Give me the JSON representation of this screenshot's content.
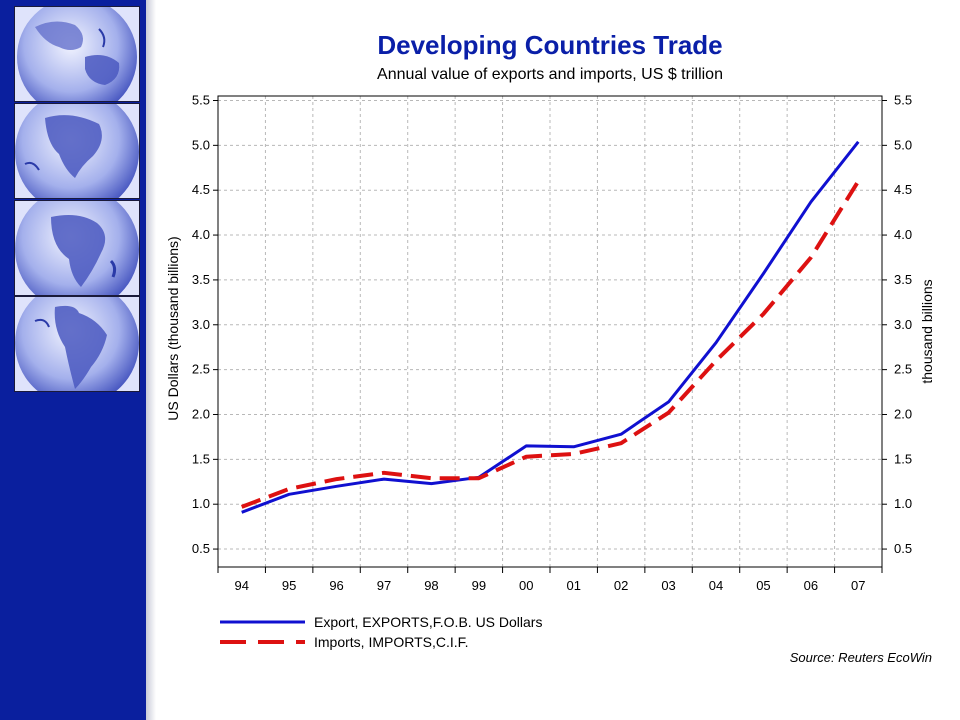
{
  "colors": {
    "sidebar": "#0a1f9e",
    "title": "#0a1fa8",
    "export_line": "#1010d0",
    "import_line": "#dd1111",
    "grid": "#b8b8b8"
  },
  "sidebar": {
    "globes": [
      {
        "icon": "globe-asia-australia-icon"
      },
      {
        "icon": "globe-north-america-icon"
      },
      {
        "icon": "globe-africa-icon"
      },
      {
        "icon": "globe-south-america-icon"
      }
    ]
  },
  "chart_data": {
    "type": "line",
    "title": "Developing Countries Trade",
    "subtitle": "Annual value of exports and imports, US $ trillion",
    "ylabel_left": "US Dollars (thousand billions)",
    "ylabel_right": "thousand billions",
    "categories": [
      "94",
      "95",
      "96",
      "97",
      "98",
      "99",
      "00",
      "01",
      "02",
      "03",
      "04",
      "05",
      "06",
      "07"
    ],
    "ylim": [
      0.3,
      5.55
    ],
    "yticks": [
      "5.5",
      "5.0",
      "4.5",
      "4.0",
      "3.5",
      "3.0",
      "2.5",
      "2.0",
      "1.5",
      "1.0",
      "0.5"
    ],
    "grid": true,
    "legend_position": "bottom-left",
    "series": [
      {
        "name": "Export, EXPORTS,F.O.B. US Dollars",
        "color": "#1010d0",
        "style": "solid",
        "values": [
          0.91,
          1.11,
          1.2,
          1.28,
          1.23,
          1.3,
          1.65,
          1.64,
          1.78,
          2.14,
          2.8,
          3.57,
          4.37,
          5.04
        ]
      },
      {
        "name": "Imports, IMPORTS,C.I.F.",
        "color": "#dd1111",
        "style": "dashed",
        "values": [
          0.97,
          1.17,
          1.28,
          1.35,
          1.29,
          1.29,
          1.53,
          1.56,
          1.68,
          2.02,
          2.6,
          3.12,
          3.75,
          4.6
        ]
      }
    ],
    "source": "Source: Reuters EcoWin"
  }
}
